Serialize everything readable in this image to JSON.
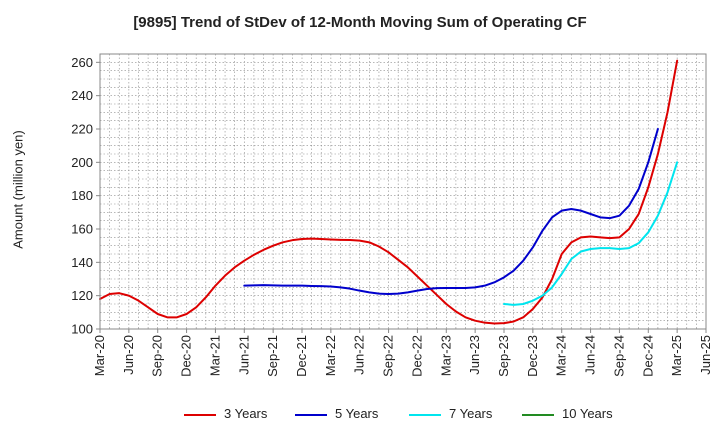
{
  "chart_data": {
    "type": "line",
    "title": "[9895]  Trend of StDev of 12-Month Moving Sum of Operating CF",
    "xlabel": "",
    "ylabel": "Amount (million yen)",
    "ylim": [
      100,
      265
    ],
    "yticks": [
      100,
      120,
      140,
      160,
      180,
      200,
      220,
      240,
      260
    ],
    "xlim": [
      "Mar-20",
      "Jun-25"
    ],
    "xticks": [
      "Mar-20",
      "Jun-20",
      "Sep-20",
      "Dec-20",
      "Mar-21",
      "Jun-21",
      "Sep-21",
      "Dec-21",
      "Mar-22",
      "Jun-22",
      "Sep-22",
      "Dec-22",
      "Mar-23",
      "Jun-23",
      "Sep-23",
      "Dec-23",
      "Mar-24",
      "Jun-24",
      "Sep-24",
      "Dec-24",
      "Mar-25",
      "Jun-25"
    ],
    "grid": true,
    "legend": "bottom",
    "series": [
      {
        "name": "3 Years",
        "color": "#dd0000",
        "start": "Mar-20",
        "values": [
          118,
          121,
          121.5,
          120,
          117,
          113,
          109,
          107,
          107,
          109,
          113,
          119,
          126,
          132,
          137,
          141,
          144.5,
          147.5,
          150,
          152,
          153.3,
          154,
          154.2,
          154,
          153.7,
          153.5,
          153.4,
          153,
          152,
          149.5,
          146,
          141.5,
          137,
          131.5,
          126,
          120.5,
          115,
          110.5,
          107,
          105,
          103.8,
          103.3,
          103.5,
          104.5,
          107,
          112,
          119,
          130,
          145,
          152,
          155,
          155.5,
          155,
          154.5,
          155,
          160,
          169,
          185,
          205,
          230,
          261
        ]
      },
      {
        "name": "5 Years",
        "color": "#0000cc",
        "start": "Jun-21",
        "values": [
          126,
          126.2,
          126.3,
          126.2,
          126,
          126,
          126,
          125.8,
          125.7,
          125.5,
          125,
          124.2,
          123,
          122,
          121.2,
          121,
          121.2,
          122,
          123,
          124,
          124.5,
          124.6,
          124.6,
          124.6,
          125,
          126,
          128,
          131,
          135,
          141,
          149,
          159,
          167,
          171,
          172,
          171,
          169,
          167,
          166.5,
          168,
          174,
          184,
          200,
          220
        ]
      },
      {
        "name": "7 Years",
        "color": "#00e5ee",
        "start": "Sep-23",
        "values": [
          115,
          114.5,
          115,
          117,
          120,
          125,
          133,
          142,
          146.5,
          148,
          148.5,
          148.5,
          148,
          148.5,
          151.5,
          158,
          168,
          182,
          200
        ]
      },
      {
        "name": "10 Years",
        "color": "#228b22",
        "start": "Mar-25",
        "values": []
      }
    ]
  }
}
